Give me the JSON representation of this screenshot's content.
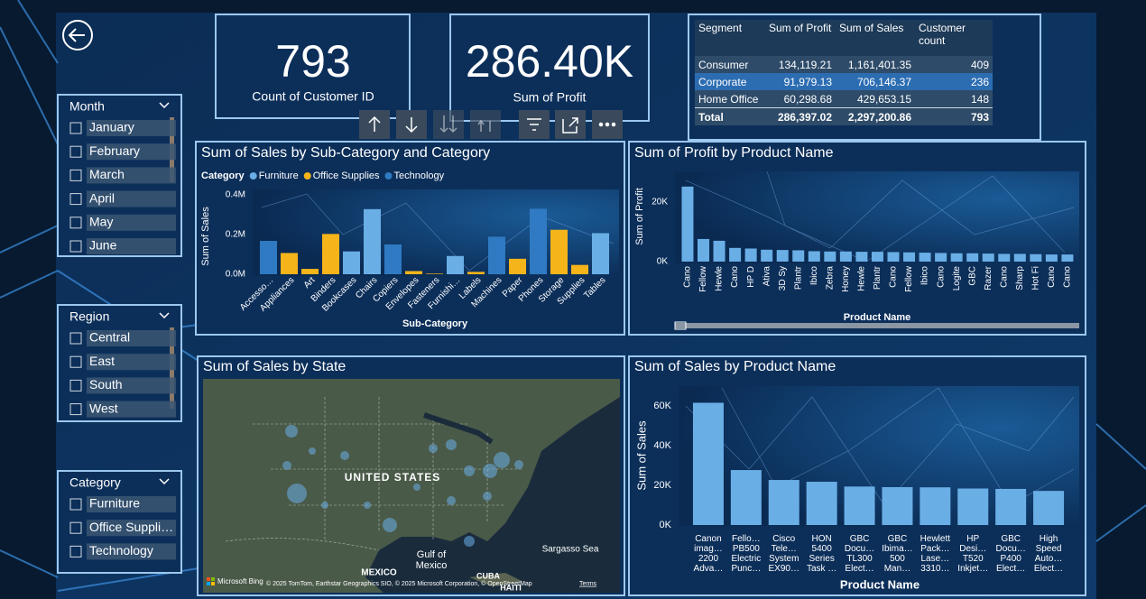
{
  "kpis": [
    {
      "value": "793",
      "label": "Count of Customer ID"
    },
    {
      "value": "286.40K",
      "label": "Sum of Profit"
    }
  ],
  "table": {
    "headers": [
      "Segment",
      "Sum of Profit",
      "Sum of Sales",
      "Customer count"
    ],
    "rows": [
      [
        "Consumer",
        "134,119.21",
        "1,161,401.35",
        "409"
      ],
      [
        "Corporate",
        "91,979.13",
        "706,146.37",
        "236"
      ],
      [
        "Home Office",
        "60,298.68",
        "429,653.15",
        "148"
      ]
    ],
    "total": [
      "Total",
      "286,397.02",
      "2,297,200.86",
      "793"
    ]
  },
  "slicers": [
    {
      "title": "Month",
      "items": [
        "January",
        "February",
        "March",
        "April",
        "May",
        "June"
      ]
    },
    {
      "title": "Region",
      "items": [
        "Central",
        "East",
        "South",
        "West"
      ]
    },
    {
      "title": "Category",
      "items": [
        "Furniture",
        "Office Suppli…",
        "Technology"
      ]
    }
  ],
  "map": {
    "title": "Sum of Sales by State",
    "country": "UNITED STATES",
    "gulf": "Gulf of\nMexico",
    "sea": "Sargasso Sea",
    "mexico": "MEXICO",
    "cuba": "CUBA",
    "haiti": "HAITI",
    "provider": "Microsoft Bing",
    "attribution": "© 2025 TomTom, Earthstar Geographics SIO, © 2025 Microsoft Corporation, © OpenStreetMap",
    "terms": "Terms"
  },
  "chart_data": [
    {
      "type": "bar",
      "title": "Sum of Sales by Sub-Category and Category",
      "legend_title": "Category",
      "x_label": "Sub-Category",
      "y_label": "Sum of Sales",
      "categories": [
        "Accesso…",
        "Appliances",
        "Art",
        "Binders",
        "Bookcases",
        "Chairs",
        "Copiers",
        "Envelopes",
        "Fasteners",
        "Furnishi…",
        "Labels",
        "Machines",
        "Paper",
        "Phones",
        "Storage",
        "Supplies",
        "Tables"
      ],
      "series": [
        {
          "name": "Furniture",
          "color": "#6aaee6",
          "values": [
            null,
            null,
            null,
            null,
            115000,
            328000,
            null,
            null,
            null,
            92000,
            null,
            null,
            null,
            null,
            null,
            null,
            207000
          ]
        },
        {
          "name": "Office Supplies",
          "color": "#f4b41a",
          "values": [
            null,
            107000,
            27000,
            203000,
            null,
            null,
            null,
            16000,
            3000,
            null,
            12000,
            null,
            78000,
            null,
            224000,
            47000,
            null
          ]
        },
        {
          "name": "Technology",
          "color": "#2f7ac2",
          "values": [
            168000,
            null,
            null,
            null,
            null,
            null,
            150000,
            null,
            null,
            null,
            null,
            189000,
            null,
            330000,
            null,
            null,
            null
          ]
        }
      ],
      "ylim": [
        0,
        420000
      ],
      "yticks": [
        {
          "value": 0,
          "label": "0.0M"
        },
        {
          "value": 200000,
          "label": "0.2M"
        },
        {
          "value": 400000,
          "label": "0.4M"
        }
      ]
    },
    {
      "type": "bar",
      "title": "Sum of Profit by Product Name",
      "x_label": "Product Name",
      "y_label": "Sum of Profit",
      "categories": [
        "Cano",
        "Fellow",
        "Hewle",
        "Cano",
        "HP D",
        "Ativa",
        "3D Sy",
        "Plantr",
        "Ibico",
        "Zebra",
        "Honey",
        "Hewle",
        "Plantr",
        "Cano",
        "Fellow",
        "Ibico",
        "Cano",
        "Logite",
        "GBC",
        "Razer",
        "Cano",
        "Sharp",
        "Hot Fi",
        "Cano",
        "Cano"
      ],
      "values": [
        25200,
        7600,
        7000,
        4600,
        4400,
        4000,
        3900,
        3800,
        3500,
        3400,
        3400,
        3300,
        3300,
        3200,
        3100,
        3000,
        2900,
        2800,
        2800,
        2700,
        2600,
        2600,
        2500,
        2400,
        2400
      ],
      "color": "#6aaee6",
      "ylim": [
        0,
        30500
      ],
      "yticks": [
        {
          "value": 0,
          "label": "0K"
        },
        {
          "value": 20000,
          "label": "20K"
        }
      ]
    },
    {
      "type": "bar",
      "title": "Sum of Sales by Product Name",
      "x_label": "Product Name",
      "y_label": "Sum of Sales",
      "categories": [
        "Canon\nimag…\n2200\nAdva…",
        "Fello…\nPB500\nElectric\nPunc…",
        "Cisco\nTele…\nSystem\nEX90…",
        "HON\n5400\nSeries\nTask …",
        "GBC\nDocu…\nTL300\nElect…",
        "GBC\nIbima…\n500\nMan…",
        "Hewlett\nPack…\nLase…\n3310…",
        "HP\nDesi…\nT520\nInkjet…",
        "GBC\nDocu…\nP400\nElect…",
        "High\nSpeed\nAuto…\nElect…"
      ],
      "values": [
        61600,
        27700,
        22700,
        21800,
        19400,
        19100,
        19000,
        18400,
        18200,
        17200
      ],
      "color": "#6aaee6",
      "ylim": [
        0,
        70000
      ],
      "yticks": [
        {
          "value": 0,
          "label": "0K"
        },
        {
          "value": 20000,
          "label": "20K"
        },
        {
          "value": 40000,
          "label": "40K"
        },
        {
          "value": 60000,
          "label": "60K"
        }
      ]
    }
  ]
}
